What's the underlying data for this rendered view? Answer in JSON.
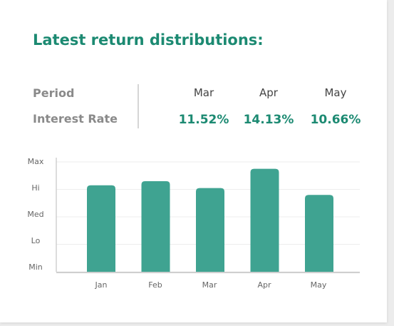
{
  "header": {
    "title": "Latest return distributions:"
  },
  "summary": {
    "period_label": "Period",
    "rate_label": "Interest Rate",
    "columns": [
      {
        "month": "Mar",
        "rate": "11.52%"
      },
      {
        "month": "Apr",
        "rate": "14.13%"
      },
      {
        "month": "May",
        "rate": "10.66%"
      }
    ]
  },
  "colors": {
    "accent": "#1c8a72",
    "bar": "#3fa391"
  },
  "chart_data": {
    "type": "bar",
    "title": "",
    "xlabel": "",
    "ylabel": "",
    "categories": [
      "Jan",
      "Feb",
      "Mar",
      "Apr",
      "May"
    ],
    "y_tick_labels": [
      "Max",
      "Hi",
      "Med",
      "Lo",
      "Min"
    ],
    "y_scale": "ordinal levels (Min=0, Lo=1, Med=2, Hi=3, Max=4)",
    "ylim": [
      0,
      4
    ],
    "values": [
      3.15,
      3.3,
      3.05,
      3.75,
      2.8
    ],
    "grid": true,
    "legend": "none"
  }
}
